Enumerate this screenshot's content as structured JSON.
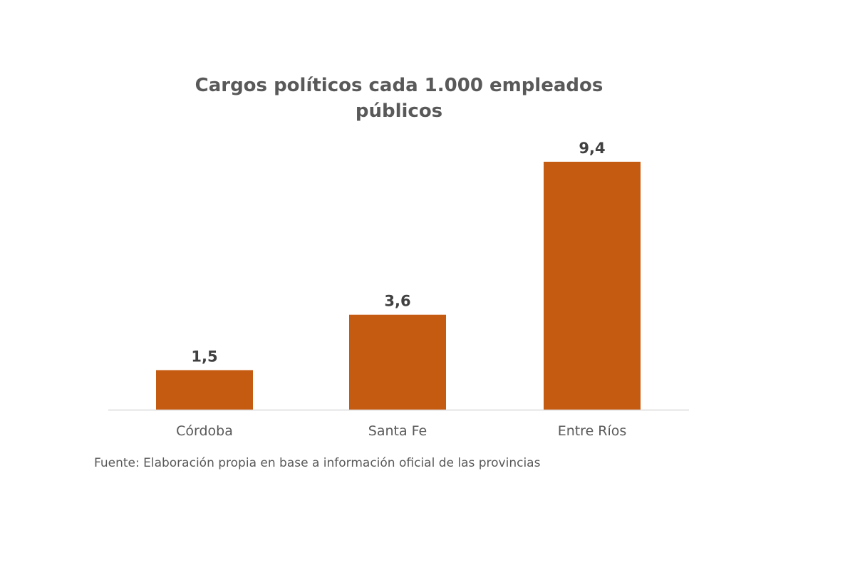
{
  "chart_data": {
    "type": "bar",
    "title_lines": [
      "Cargos políticos cada 1.000 empleados",
      "públicos"
    ],
    "categories": [
      "Córdoba",
      "Santa Fe",
      "Entre Ríos"
    ],
    "values": [
      1.5,
      3.6,
      9.4
    ],
    "value_labels": [
      "1,5",
      "3,6",
      "9,4"
    ],
    "xlabel": "",
    "ylabel": "",
    "ylim": [
      0,
      10
    ],
    "grid": false,
    "legend": "none",
    "bar_color": "#C55A11",
    "axis_color": "#D9D9D9",
    "label_color": "#404040",
    "tick_color": "#595959"
  },
  "source_note": "Fuente: Elaboración propia en base a información oficial de las provincias"
}
